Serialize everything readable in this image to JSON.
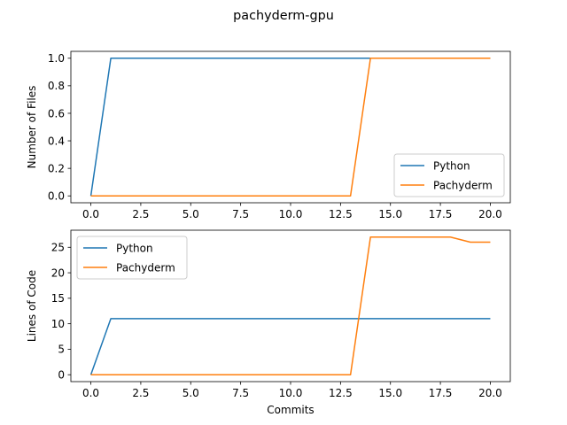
{
  "figure": {
    "title": "pachyderm-gpu"
  },
  "colors": {
    "Python": "#1f77b4",
    "Pachyderm": "#ff7f0e"
  },
  "chart_data": [
    {
      "type": "line",
      "title": "",
      "xlabel": "",
      "ylabel": "Number of Files",
      "xlim": [
        -1,
        21
      ],
      "ylim": [
        -0.05,
        1.05
      ],
      "xticks": [
        0.0,
        2.5,
        5.0,
        7.5,
        10.0,
        12.5,
        15.0,
        17.5,
        20.0
      ],
      "xtick_labels": [
        "0.0",
        "2.5",
        "5.0",
        "7.5",
        "10.0",
        "12.5",
        "15.0",
        "17.5",
        "20.0"
      ],
      "yticks": [
        0.0,
        0.2,
        0.4,
        0.6,
        0.8,
        1.0
      ],
      "ytick_labels": [
        "0.0",
        "0.2",
        "0.4",
        "0.6",
        "0.8",
        "1.0"
      ],
      "grid": false,
      "legend": "lower-right",
      "x": [
        0,
        1,
        2,
        3,
        4,
        5,
        6,
        7,
        8,
        9,
        10,
        11,
        12,
        13,
        14,
        15,
        16,
        17,
        18,
        19,
        20
      ],
      "series": [
        {
          "name": "Python",
          "values": [
            0,
            1,
            1,
            1,
            1,
            1,
            1,
            1,
            1,
            1,
            1,
            1,
            1,
            1,
            1,
            1,
            1,
            1,
            1,
            1,
            1
          ]
        },
        {
          "name": "Pachyderm",
          "values": [
            0,
            0,
            0,
            0,
            0,
            0,
            0,
            0,
            0,
            0,
            0,
            0,
            0,
            0,
            1,
            1,
            1,
            1,
            1,
            1,
            1
          ]
        }
      ]
    },
    {
      "type": "line",
      "title": "",
      "xlabel": "Commits",
      "ylabel": "Lines of Code",
      "xlim": [
        -1,
        21
      ],
      "ylim": [
        -1.35,
        28.35
      ],
      "xticks": [
        0.0,
        2.5,
        5.0,
        7.5,
        10.0,
        12.5,
        15.0,
        17.5,
        20.0
      ],
      "xtick_labels": [
        "0.0",
        "2.5",
        "5.0",
        "7.5",
        "10.0",
        "12.5",
        "15.0",
        "17.5",
        "20.0"
      ],
      "yticks": [
        0,
        5,
        10,
        15,
        20,
        25
      ],
      "ytick_labels": [
        "0",
        "5",
        "10",
        "15",
        "20",
        "25"
      ],
      "grid": false,
      "legend": "upper-left",
      "x": [
        0,
        1,
        2,
        3,
        4,
        5,
        6,
        7,
        8,
        9,
        10,
        11,
        12,
        13,
        14,
        15,
        16,
        17,
        18,
        19,
        20
      ],
      "series": [
        {
          "name": "Python",
          "values": [
            0,
            11,
            11,
            11,
            11,
            11,
            11,
            11,
            11,
            11,
            11,
            11,
            11,
            11,
            11,
            11,
            11,
            11,
            11,
            11,
            11
          ]
        },
        {
          "name": "Pachyderm",
          "values": [
            0,
            0,
            0,
            0,
            0,
            0,
            0,
            0,
            0,
            0,
            0,
            0,
            0,
            0,
            27,
            27,
            27,
            27,
            27,
            26,
            26
          ]
        }
      ]
    }
  ]
}
